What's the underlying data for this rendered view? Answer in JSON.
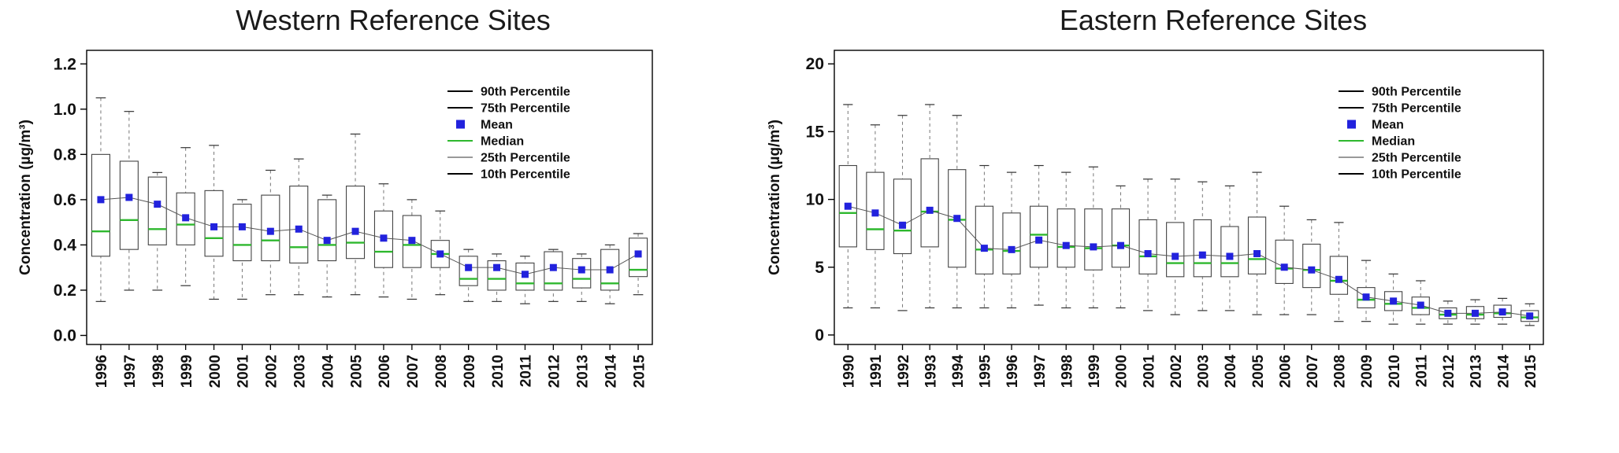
{
  "page": {
    "background": "#ffffff"
  },
  "colors": {
    "frame": "#000000",
    "box_stroke": "#444444",
    "whisker": "#777777",
    "mean_fill": "#2222dd",
    "mean_line": "#555555",
    "median": "#2eb82e",
    "text": "#111111"
  },
  "chart_data": [
    {
      "type": "boxplot",
      "title": "Western Reference Sites",
      "ylabel": "Concentration (µg/m³)",
      "xlabel": "",
      "ylim": [
        -0.04,
        1.26
      ],
      "yticks": [
        "0.0",
        "0.2",
        "0.4",
        "0.6",
        "0.8",
        "1.0",
        "1.2"
      ],
      "grid": false,
      "legend_position": "top-right-inside",
      "legend": [
        {
          "label": "90th Percentile",
          "swatch": "line",
          "color": "#000000"
        },
        {
          "label": "75th Percentile",
          "swatch": "line",
          "color": "#000000"
        },
        {
          "label": "Mean",
          "swatch": "square",
          "color": "#2222dd"
        },
        {
          "label": "Median",
          "swatch": "line",
          "color": "#2eb82e"
        },
        {
          "label": "25th Percentile",
          "swatch": "line",
          "color": "#999999"
        },
        {
          "label": "10th Percentile",
          "swatch": "line",
          "color": "#000000"
        }
      ],
      "categories": [
        "1996",
        "1997",
        "1998",
        "1999",
        "2000",
        "2001",
        "2002",
        "2003",
        "2004",
        "2005",
        "2006",
        "2007",
        "2008",
        "2009",
        "2010",
        "2011",
        "2012",
        "2013",
        "2014",
        "2015"
      ],
      "boxes": [
        {
          "year": "1996",
          "p10": 0.15,
          "p25": 0.35,
          "median": 0.46,
          "p75": 0.8,
          "p90": 1.05,
          "mean": 0.6
        },
        {
          "year": "1997",
          "p10": 0.2,
          "p25": 0.38,
          "median": 0.51,
          "p75": 0.77,
          "p90": 0.99,
          "mean": 0.61
        },
        {
          "year": "1998",
          "p10": 0.2,
          "p25": 0.4,
          "median": 0.47,
          "p75": 0.7,
          "p90": 0.72,
          "mean": 0.58
        },
        {
          "year": "1999",
          "p10": 0.22,
          "p25": 0.4,
          "median": 0.49,
          "p75": 0.63,
          "p90": 0.83,
          "mean": 0.52
        },
        {
          "year": "2000",
          "p10": 0.16,
          "p25": 0.35,
          "median": 0.43,
          "p75": 0.64,
          "p90": 0.84,
          "mean": 0.48
        },
        {
          "year": "2001",
          "p10": 0.16,
          "p25": 0.33,
          "median": 0.4,
          "p75": 0.58,
          "p90": 0.6,
          "mean": 0.48
        },
        {
          "year": "2002",
          "p10": 0.18,
          "p25": 0.33,
          "median": 0.42,
          "p75": 0.62,
          "p90": 0.73,
          "mean": 0.46
        },
        {
          "year": "2003",
          "p10": 0.18,
          "p25": 0.32,
          "median": 0.39,
          "p75": 0.66,
          "p90": 0.78,
          "mean": 0.47
        },
        {
          "year": "2004",
          "p10": 0.17,
          "p25": 0.33,
          "median": 0.4,
          "p75": 0.6,
          "p90": 0.62,
          "mean": 0.42
        },
        {
          "year": "2005",
          "p10": 0.18,
          "p25": 0.34,
          "median": 0.41,
          "p75": 0.66,
          "p90": 0.89,
          "mean": 0.46
        },
        {
          "year": "2006",
          "p10": 0.17,
          "p25": 0.3,
          "median": 0.37,
          "p75": 0.55,
          "p90": 0.67,
          "mean": 0.43
        },
        {
          "year": "2007",
          "p10": 0.16,
          "p25": 0.3,
          "median": 0.4,
          "p75": 0.53,
          "p90": 0.6,
          "mean": 0.42
        },
        {
          "year": "2008",
          "p10": 0.18,
          "p25": 0.3,
          "median": 0.36,
          "p75": 0.42,
          "p90": 0.55,
          "mean": 0.36
        },
        {
          "year": "2009",
          "p10": 0.15,
          "p25": 0.22,
          "median": 0.25,
          "p75": 0.35,
          "p90": 0.38,
          "mean": 0.3
        },
        {
          "year": "2010",
          "p10": 0.15,
          "p25": 0.2,
          "median": 0.25,
          "p75": 0.33,
          "p90": 0.36,
          "mean": 0.3
        },
        {
          "year": "2011",
          "p10": 0.14,
          "p25": 0.2,
          "median": 0.23,
          "p75": 0.32,
          "p90": 0.35,
          "mean": 0.27
        },
        {
          "year": "2012",
          "p10": 0.15,
          "p25": 0.2,
          "median": 0.23,
          "p75": 0.37,
          "p90": 0.38,
          "mean": 0.3
        },
        {
          "year": "2013",
          "p10": 0.15,
          "p25": 0.21,
          "median": 0.25,
          "p75": 0.34,
          "p90": 0.36,
          "mean": 0.29
        },
        {
          "year": "2014",
          "p10": 0.14,
          "p25": 0.2,
          "median": 0.23,
          "p75": 0.38,
          "p90": 0.4,
          "mean": 0.29
        },
        {
          "year": "2015",
          "p10": 0.18,
          "p25": 0.26,
          "median": 0.29,
          "p75": 0.43,
          "p90": 0.45,
          "mean": 0.36
        }
      ]
    },
    {
      "type": "boxplot",
      "title": "Eastern Reference Sites",
      "ylabel": "Concentration (µg/m³)",
      "xlabel": "",
      "ylim": [
        -0.7,
        21
      ],
      "yticks": [
        "0",
        "5",
        "10",
        "15",
        "20"
      ],
      "grid": false,
      "legend_position": "top-right-inside",
      "legend": [
        {
          "label": "90th Percentile",
          "swatch": "line",
          "color": "#000000"
        },
        {
          "label": "75th Percentile",
          "swatch": "line",
          "color": "#000000"
        },
        {
          "label": "Mean",
          "swatch": "square",
          "color": "#2222dd"
        },
        {
          "label": "Median",
          "swatch": "line",
          "color": "#2eb82e"
        },
        {
          "label": "25th Percentile",
          "swatch": "line",
          "color": "#999999"
        },
        {
          "label": "10th Percentile",
          "swatch": "line",
          "color": "#000000"
        }
      ],
      "categories": [
        "1990",
        "1991",
        "1992",
        "1993",
        "1994",
        "1995",
        "1996",
        "1997",
        "1998",
        "1999",
        "2000",
        "2001",
        "2002",
        "2003",
        "2004",
        "2005",
        "2006",
        "2007",
        "2008",
        "2009",
        "2010",
        "2011",
        "2012",
        "2013",
        "2014",
        "2015"
      ],
      "boxes": [
        {
          "year": "1990",
          "p10": 2.0,
          "p25": 6.5,
          "median": 9.0,
          "p75": 12.5,
          "p90": 17.0,
          "mean": 9.5
        },
        {
          "year": "1991",
          "p10": 2.0,
          "p25": 6.3,
          "median": 7.8,
          "p75": 12.0,
          "p90": 15.5,
          "mean": 9.0
        },
        {
          "year": "1992",
          "p10": 1.8,
          "p25": 6.0,
          "median": 7.7,
          "p75": 11.5,
          "p90": 16.2,
          "mean": 8.1
        },
        {
          "year": "1993",
          "p10": 2.0,
          "p25": 6.5,
          "median": 9.1,
          "p75": 13.0,
          "p90": 17.0,
          "mean": 9.2
        },
        {
          "year": "1994",
          "p10": 2.0,
          "p25": 5.0,
          "median": 8.5,
          "p75": 12.2,
          "p90": 16.2,
          "mean": 8.6
        },
        {
          "year": "1995",
          "p10": 2.0,
          "p25": 4.5,
          "median": 6.3,
          "p75": 9.5,
          "p90": 12.5,
          "mean": 6.4
        },
        {
          "year": "1996",
          "p10": 2.0,
          "p25": 4.5,
          "median": 6.2,
          "p75": 9.0,
          "p90": 12.0,
          "mean": 6.3
        },
        {
          "year": "1997",
          "p10": 2.2,
          "p25": 5.0,
          "median": 7.4,
          "p75": 9.5,
          "p90": 12.5,
          "mean": 7.0
        },
        {
          "year": "1998",
          "p10": 2.0,
          "p25": 5.0,
          "median": 6.5,
          "p75": 9.3,
          "p90": 12.0,
          "mean": 6.6
        },
        {
          "year": "1999",
          "p10": 2.0,
          "p25": 4.8,
          "median": 6.4,
          "p75": 9.3,
          "p90": 12.4,
          "mean": 6.5
        },
        {
          "year": "2000",
          "p10": 2.0,
          "p25": 5.0,
          "median": 6.6,
          "p75": 9.3,
          "p90": 11.0,
          "mean": 6.6
        },
        {
          "year": "2001",
          "p10": 1.8,
          "p25": 4.5,
          "median": 5.8,
          "p75": 8.5,
          "p90": 11.5,
          "mean": 6.0
        },
        {
          "year": "2002",
          "p10": 1.5,
          "p25": 4.3,
          "median": 5.3,
          "p75": 8.3,
          "p90": 11.5,
          "mean": 5.8
        },
        {
          "year": "2003",
          "p10": 1.8,
          "p25": 4.3,
          "median": 5.3,
          "p75": 8.5,
          "p90": 11.3,
          "mean": 5.9
        },
        {
          "year": "2004",
          "p10": 1.8,
          "p25": 4.3,
          "median": 5.3,
          "p75": 8.0,
          "p90": 11.0,
          "mean": 5.8
        },
        {
          "year": "2005",
          "p10": 1.5,
          "p25": 4.5,
          "median": 5.6,
          "p75": 8.7,
          "p90": 12.0,
          "mean": 6.0
        },
        {
          "year": "2006",
          "p10": 1.5,
          "p25": 3.8,
          "median": 4.9,
          "p75": 7.0,
          "p90": 9.5,
          "mean": 5.0
        },
        {
          "year": "2007",
          "p10": 1.5,
          "p25": 3.5,
          "median": 4.8,
          "p75": 6.7,
          "p90": 8.5,
          "mean": 4.8
        },
        {
          "year": "2008",
          "p10": 1.0,
          "p25": 3.0,
          "median": 4.0,
          "p75": 5.8,
          "p90": 8.3,
          "mean": 4.1
        },
        {
          "year": "2009",
          "p10": 1.0,
          "p25": 2.0,
          "median": 2.6,
          "p75": 3.5,
          "p90": 5.5,
          "mean": 2.8
        },
        {
          "year": "2010",
          "p10": 0.8,
          "p25": 1.8,
          "median": 2.3,
          "p75": 3.2,
          "p90": 4.5,
          "mean": 2.5
        },
        {
          "year": "2011",
          "p10": 0.8,
          "p25": 1.5,
          "median": 2.0,
          "p75": 2.8,
          "p90": 4.0,
          "mean": 2.2
        },
        {
          "year": "2012",
          "p10": 0.8,
          "p25": 1.2,
          "median": 1.5,
          "p75": 2.0,
          "p90": 2.5,
          "mean": 1.6
        },
        {
          "year": "2013",
          "p10": 0.8,
          "p25": 1.2,
          "median": 1.5,
          "p75": 2.1,
          "p90": 2.6,
          "mean": 1.6
        },
        {
          "year": "2014",
          "p10": 0.8,
          "p25": 1.3,
          "median": 1.6,
          "p75": 2.2,
          "p90": 2.7,
          "mean": 1.7
        },
        {
          "year": "2015",
          "p10": 0.7,
          "p25": 1.0,
          "median": 1.3,
          "p75": 1.8,
          "p90": 2.3,
          "mean": 1.4
        }
      ]
    }
  ]
}
